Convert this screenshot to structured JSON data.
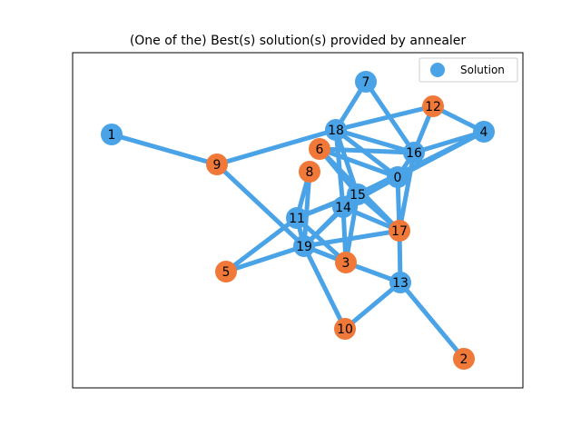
{
  "title": "(One of the) Best(s) solution(s) provided by annealer",
  "legend": {
    "label": "Solution",
    "placement": "top-right"
  },
  "colors": {
    "blue": "#4aa3e6",
    "orange": "#f07838",
    "edge": "#4aa3e6"
  },
  "nodes": [
    {
      "id": "0",
      "label": "0",
      "group": "blue"
    },
    {
      "id": "1",
      "label": "1",
      "group": "blue"
    },
    {
      "id": "2",
      "label": "2",
      "group": "orange"
    },
    {
      "id": "3",
      "label": "3",
      "group": "orange"
    },
    {
      "id": "4",
      "label": "4",
      "group": "blue"
    },
    {
      "id": "5",
      "label": "5",
      "group": "orange"
    },
    {
      "id": "6",
      "label": "6",
      "group": "orange"
    },
    {
      "id": "7",
      "label": "7",
      "group": "blue"
    },
    {
      "id": "8",
      "label": "8",
      "group": "orange"
    },
    {
      "id": "9",
      "label": "9",
      "group": "orange"
    },
    {
      "id": "10",
      "label": "10",
      "group": "orange"
    },
    {
      "id": "11",
      "label": "11",
      "group": "blue"
    },
    {
      "id": "12",
      "label": "12",
      "group": "orange"
    },
    {
      "id": "13",
      "label": "13",
      "group": "blue"
    },
    {
      "id": "14",
      "label": "14",
      "group": "blue"
    },
    {
      "id": "15",
      "label": "15",
      "group": "blue"
    },
    {
      "id": "16",
      "label": "16",
      "group": "blue"
    },
    {
      "id": "17",
      "label": "17",
      "group": "orange"
    },
    {
      "id": "18",
      "label": "18",
      "group": "blue"
    },
    {
      "id": "19",
      "label": "19",
      "group": "blue"
    }
  ],
  "edges": [
    [
      "1",
      "9"
    ],
    [
      "9",
      "18"
    ],
    [
      "9",
      "19"
    ],
    [
      "18",
      "12"
    ],
    [
      "18",
      "7"
    ],
    [
      "18",
      "16"
    ],
    [
      "18",
      "15"
    ],
    [
      "18",
      "14"
    ],
    [
      "18",
      "0"
    ],
    [
      "7",
      "16"
    ],
    [
      "12",
      "16"
    ],
    [
      "12",
      "4"
    ],
    [
      "4",
      "16"
    ],
    [
      "4",
      "0"
    ],
    [
      "4",
      "15"
    ],
    [
      "16",
      "17"
    ],
    [
      "16",
      "0"
    ],
    [
      "6",
      "16"
    ],
    [
      "6",
      "0"
    ],
    [
      "6",
      "15"
    ],
    [
      "6",
      "17"
    ],
    [
      "8",
      "11"
    ],
    [
      "8",
      "19"
    ],
    [
      "0",
      "15"
    ],
    [
      "0",
      "17"
    ],
    [
      "0",
      "14"
    ],
    [
      "0",
      "11"
    ],
    [
      "15",
      "14"
    ],
    [
      "15",
      "17"
    ],
    [
      "15",
      "11"
    ],
    [
      "15",
      "19"
    ],
    [
      "15",
      "3"
    ],
    [
      "14",
      "3"
    ],
    [
      "14",
      "19"
    ],
    [
      "14",
      "17"
    ],
    [
      "11",
      "19"
    ],
    [
      "11",
      "3"
    ],
    [
      "11",
      "5"
    ],
    [
      "19",
      "5"
    ],
    [
      "19",
      "17"
    ],
    [
      "19",
      "3"
    ],
    [
      "19",
      "10"
    ],
    [
      "3",
      "13"
    ],
    [
      "13",
      "10"
    ],
    [
      "13",
      "2"
    ],
    [
      "17",
      "13"
    ]
  ]
}
